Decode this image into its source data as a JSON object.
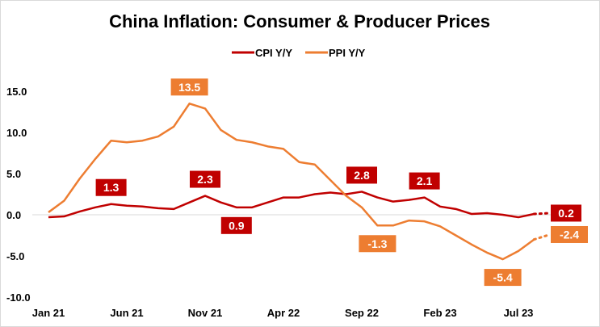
{
  "chart_data": {
    "type": "line",
    "title": "China Inflation: Consumer & Producer Prices",
    "x": [
      "Jan 21",
      "Feb 21",
      "Mar 21",
      "Apr 21",
      "May 21",
      "Jun 21",
      "Jul 21",
      "Aug 21",
      "Sep 21",
      "Oct 21",
      "Nov 21",
      "Dec 21",
      "Jan 22",
      "Feb 22",
      "Mar 22",
      "Apr 22",
      "May 22",
      "Jun 22",
      "Jul 22",
      "Aug 22",
      "Sep 22",
      "Oct 22",
      "Nov 22",
      "Dec 22",
      "Jan 23",
      "Feb 23",
      "Mar 23",
      "Apr 23",
      "May 23",
      "Jun 23",
      "Jul 23",
      "Aug 23",
      "Sep 23"
    ],
    "x_tick_labels": [
      "Jan 21",
      "Jun 21",
      "Nov 21",
      "Apr 22",
      "Sep 22",
      "Feb 23",
      "Jul 23"
    ],
    "y_tick_labels": [
      "15.0",
      "10.0",
      "5.0",
      "0.0",
      "-5.0",
      "-10.0"
    ],
    "ylim": [
      -10,
      15
    ],
    "grid": "zero line only",
    "legend_placement": "top-center",
    "forecast_points_dotted": 1,
    "series": [
      {
        "name": "CPI Y/Y",
        "color": "#c00000",
        "values": [
          -0.3,
          -0.2,
          0.4,
          0.9,
          1.3,
          1.1,
          1.0,
          0.8,
          0.7,
          1.5,
          2.3,
          1.5,
          0.9,
          0.9,
          1.5,
          2.1,
          2.1,
          2.5,
          2.7,
          2.5,
          2.8,
          2.1,
          1.6,
          1.8,
          2.1,
          1.0,
          0.7,
          0.1,
          0.2,
          0.0,
          -0.3,
          0.1,
          0.2
        ],
        "labels": [
          {
            "i": 4,
            "text": "1.3",
            "pos": "above"
          },
          {
            "i": 10,
            "text": "2.3",
            "pos": "above"
          },
          {
            "i": 12,
            "text": "0.9",
            "pos": "below"
          },
          {
            "i": 20,
            "text": "2.8",
            "pos": "above"
          },
          {
            "i": 24,
            "text": "2.1",
            "pos": "above"
          },
          {
            "i": 32,
            "text": "0.2",
            "pos": "right"
          }
        ]
      },
      {
        "name": "PPI Y/Y",
        "color": "#ed7d31",
        "values": [
          0.3,
          1.7,
          4.4,
          6.8,
          9.0,
          8.8,
          9.0,
          9.5,
          10.7,
          13.5,
          12.9,
          10.3,
          9.1,
          8.8,
          8.3,
          8.0,
          6.4,
          6.1,
          4.2,
          2.3,
          0.9,
          -1.3,
          -1.3,
          -0.7,
          -0.8,
          -1.4,
          -2.5,
          -3.6,
          -4.6,
          -5.4,
          -4.4,
          -3.0,
          -2.4
        ],
        "labels": [
          {
            "i": 9,
            "text": "13.5",
            "pos": "above"
          },
          {
            "i": 21,
            "text": "-1.3",
            "pos": "below"
          },
          {
            "i": 29,
            "text": "-5.4",
            "pos": "below"
          },
          {
            "i": 32,
            "text": "-2.4",
            "pos": "right"
          }
        ]
      }
    ]
  }
}
